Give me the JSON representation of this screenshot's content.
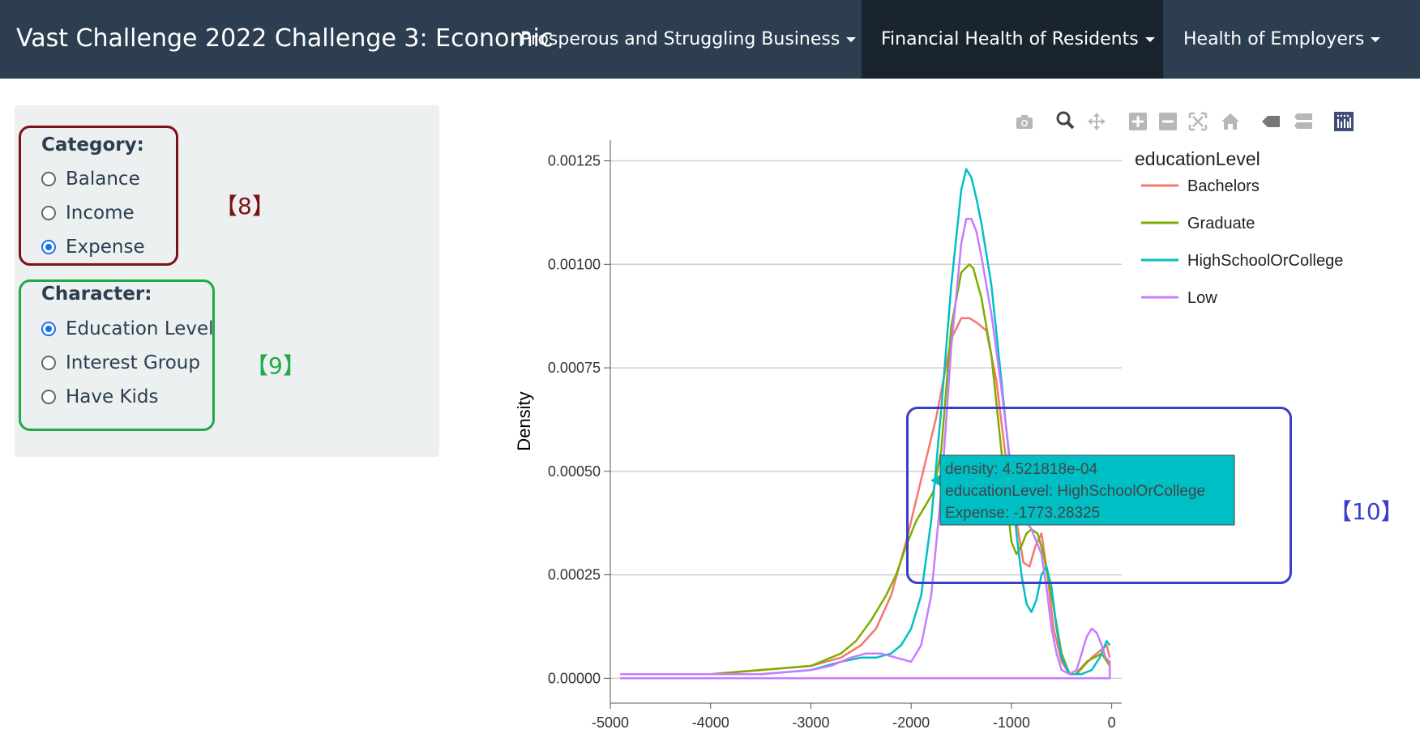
{
  "navbar": {
    "brand": "Vast Challenge 2022 Challenge 3: Economic",
    "items": [
      {
        "label": "Prosperous and Struggling Business",
        "active": false
      },
      {
        "label": "Financial Health of Residents",
        "active": true
      },
      {
        "label": "Health of Employers",
        "active": false
      }
    ]
  },
  "sidebar": {
    "category_label": "Category:",
    "category_options": [
      "Balance",
      "Income",
      "Expense"
    ],
    "category_selected": "Expense",
    "character_label": "Character:",
    "character_options": [
      "Education Level",
      "Interest Group",
      "Have Kids"
    ],
    "character_selected": "Education Level"
  },
  "annotations": {
    "a8": "【8】",
    "a9": "【9】",
    "a10": "【10】"
  },
  "colors": {
    "navbar": "#2c3e50",
    "navbar_active": "#1a242f",
    "anno8": "#7b1117",
    "anno9": "#22aa44",
    "anno10": "#3a3fc7"
  },
  "modebar_icons": [
    "camera-icon",
    "zoom-icon",
    "pan-icon",
    "zoom-in-icon",
    "zoom-out-icon",
    "autoscale-icon",
    "reset-axes-icon",
    "spike-lines-icon",
    "compare-hover-icon",
    "plotly-logo-icon"
  ],
  "tooltip": {
    "line1": "density: 4.521818e-04",
    "line2": "educationLevel: HighSchoolOrCollege",
    "line3": "Expense: -1773.28325",
    "color": "#00bfc4"
  },
  "chart_data": {
    "type": "line",
    "xlabel": "",
    "ylabel": "Density",
    "xlim": [
      -5000,
      100
    ],
    "ylim": [
      -6e-05,
      0.0013
    ],
    "x_ticks": [
      -5000,
      -4000,
      -3000,
      -2000,
      -1000,
      0
    ],
    "x_tick_labels": [
      "-5000",
      "-4000",
      "-3000",
      "-2000",
      "-1000",
      "0"
    ],
    "y_ticks": [
      0,
      0.00025,
      0.0005,
      0.00075,
      0.001,
      0.00125
    ],
    "y_tick_labels": [
      "0.00000",
      "0.00025",
      "0.00050",
      "0.00075",
      "0.00100",
      "0.00125"
    ],
    "legend_title": "educationLevel",
    "legend_position": "top-right",
    "grid": true,
    "series": [
      {
        "name": "Bachelors",
        "color": "#f8766d",
        "x": [
          -4900,
          -4000,
          -3500,
          -3000,
          -2700,
          -2500,
          -2350,
          -2200,
          -2050,
          -1900,
          -1750,
          -1600,
          -1500,
          -1420,
          -1350,
          -1250,
          -1150,
          -1050,
          -950,
          -880,
          -820,
          -760,
          -700,
          -640,
          -580,
          -500,
          -420,
          -350,
          -200,
          -50,
          -20
        ],
        "y": [
          1e-05,
          1e-05,
          2e-05,
          3e-05,
          5e-05,
          8e-05,
          0.00012,
          0.0002,
          0.00033,
          0.00048,
          0.00063,
          0.00082,
          0.00087,
          0.00087,
          0.00086,
          0.00084,
          0.00072,
          0.00052,
          0.00038,
          0.00028,
          0.00027,
          0.00032,
          0.00035,
          0.00025,
          0.00012,
          4e-05,
          1e-05,
          1e-05,
          5e-05,
          8e-05,
          5e-05
        ]
      },
      {
        "name": "Graduate",
        "color": "#7cae00",
        "x": [
          -4900,
          -4000,
          -3500,
          -3000,
          -2700,
          -2550,
          -2400,
          -2250,
          -2150,
          -2050,
          -1950,
          -1850,
          -1780,
          -1700,
          -1600,
          -1500,
          -1420,
          -1380,
          -1300,
          -1200,
          -1100,
          -1000,
          -950,
          -900,
          -850,
          -800,
          -740,
          -680,
          -600,
          -500,
          -420,
          -360,
          -250,
          -100,
          -20
        ],
        "y": [
          1e-05,
          1e-05,
          2e-05,
          3e-05,
          6e-05,
          9e-05,
          0.00014,
          0.0002,
          0.00025,
          0.00032,
          0.00038,
          0.00042,
          0.00045,
          0.00055,
          0.00085,
          0.00098,
          0.001,
          0.00099,
          0.00092,
          0.00078,
          0.00055,
          0.00033,
          0.0003,
          0.00032,
          0.00035,
          0.00036,
          0.00035,
          0.0003,
          0.0002,
          6e-05,
          1e-05,
          1e-05,
          4e-05,
          6e-05,
          3e-05
        ]
      },
      {
        "name": "HighSchoolOrCollege",
        "color": "#00bfc4",
        "x": [
          -4900,
          -4000,
          -3500,
          -3000,
          -2700,
          -2500,
          -2350,
          -2200,
          -2100,
          -2000,
          -1900,
          -1800,
          -1700,
          -1600,
          -1500,
          -1450,
          -1400,
          -1350,
          -1300,
          -1200,
          -1100,
          -1000,
          -950,
          -900,
          -850,
          -800,
          -750,
          -700,
          -650,
          -600,
          -550,
          -500,
          -420,
          -300,
          -200,
          -120,
          -50,
          -20
        ],
        "y": [
          1e-05,
          1e-05,
          1e-05,
          2e-05,
          4e-05,
          5e-05,
          5e-05,
          6e-05,
          8e-05,
          0.00012,
          0.0002,
          0.00038,
          0.00065,
          0.00095,
          0.00118,
          0.00123,
          0.00121,
          0.00116,
          0.0011,
          0.00095,
          0.00072,
          0.00048,
          0.00035,
          0.00025,
          0.00018,
          0.00016,
          0.00019,
          0.00025,
          0.00027,
          0.00022,
          0.00012,
          5e-05,
          1e-05,
          1e-05,
          2e-05,
          5e-05,
          9e-05,
          8e-05
        ]
      },
      {
        "name": "Low",
        "color": "#c77cff",
        "x": [
          -4900,
          -4000,
          -3500,
          -3000,
          -2800,
          -2600,
          -2450,
          -2300,
          -2150,
          -2000,
          -1900,
          -1800,
          -1700,
          -1600,
          -1500,
          -1450,
          -1400,
          -1350,
          -1300,
          -1200,
          -1100,
          -1000,
          -900,
          -800,
          -700,
          -650,
          -600,
          -550,
          -500,
          -420,
          -350,
          -300,
          -250,
          -200,
          -150,
          -100,
          -60,
          -20,
          -20,
          -4900
        ],
        "y": [
          1e-05,
          1e-05,
          1e-05,
          2e-05,
          3e-05,
          5e-05,
          6e-05,
          6e-05,
          5e-05,
          4e-05,
          8e-05,
          0.0002,
          0.00045,
          0.0008,
          0.00105,
          0.00111,
          0.00111,
          0.00108,
          0.00102,
          0.00088,
          0.0007,
          0.0005,
          0.0004,
          0.00036,
          0.0003,
          0.00022,
          0.00012,
          6e-05,
          2e-05,
          1e-05,
          2e-05,
          6e-05,
          0.0001,
          0.00012,
          0.00011,
          8e-05,
          5e-05,
          4e-05,
          0.0,
          0.0
        ]
      }
    ]
  }
}
